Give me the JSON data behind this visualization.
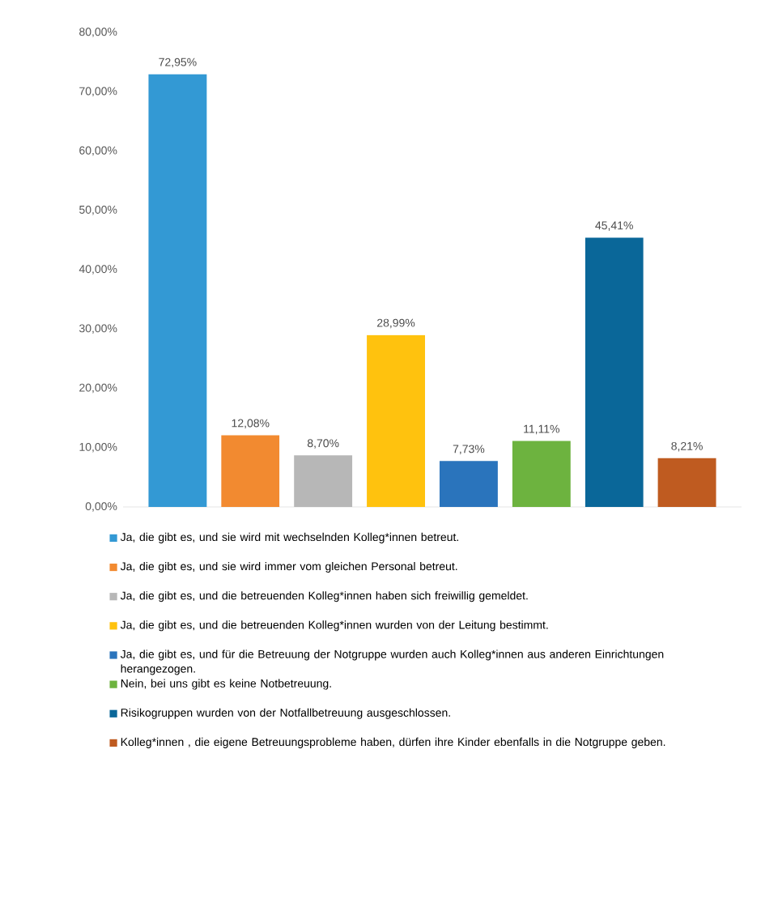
{
  "chart_data": {
    "type": "bar",
    "categories": [
      null,
      null,
      null,
      null,
      null,
      null,
      null,
      null
    ],
    "ylim": [
      0,
      80
    ],
    "yticks": [
      {
        "value": 0,
        "label": "0,00%"
      },
      {
        "value": 10,
        "label": "10,00%"
      },
      {
        "value": 20,
        "label": "20,00%"
      },
      {
        "value": 30,
        "label": "30,00%"
      },
      {
        "value": 40,
        "label": "40,00%"
      },
      {
        "value": 50,
        "label": "50,00%"
      },
      {
        "value": 60,
        "label": "60,00%"
      },
      {
        "value": 70,
        "label": "70,00%"
      },
      {
        "value": 80,
        "label": "80,00%"
      }
    ],
    "legend": "bottom",
    "series": [
      {
        "name": "Ja, die gibt es, und sie wird mit wechselnden Kolleg*innen betreut.",
        "color": "#3399d4",
        "values": [
          72.95,
          null,
          null,
          null,
          null,
          null,
          null,
          null
        ],
        "value_labels": [
          "72,95%",
          null,
          null,
          null,
          null,
          null,
          null,
          null
        ]
      },
      {
        "name": "Ja, die gibt es, und sie wird immer vom gleichen Personal betreut.",
        "color": "#f28a30",
        "values": [
          null,
          12.08,
          null,
          null,
          null,
          null,
          null,
          null
        ],
        "value_labels": [
          null,
          "12,08%",
          null,
          null,
          null,
          null,
          null,
          null
        ]
      },
      {
        "name": "Ja, die gibt es, und die betreuenden Kolleg*innen haben sich freiwillig gemeldet.",
        "color": "#b7b7b7",
        "values": [
          null,
          null,
          8.7,
          null,
          null,
          null,
          null,
          null
        ],
        "value_labels": [
          null,
          null,
          "8,70%",
          null,
          null,
          null,
          null,
          null
        ]
      },
      {
        "name": "Ja, die gibt es, und die betreuenden Kolleg*innen wurden von der Leitung bestimmt.",
        "color": "#ffc20e",
        "values": [
          null,
          null,
          null,
          28.99,
          null,
          null,
          null,
          null
        ],
        "value_labels": [
          null,
          null,
          null,
          "28,99%",
          null,
          null,
          null,
          null
        ]
      },
      {
        "name": "Ja, die gibt es, und für die Betreuung der Notgruppe wurden auch Kolleg*innen aus anderen Einrichtungen herangezogen.",
        "color": "#2a74bc",
        "values": [
          null,
          null,
          null,
          null,
          7.73,
          null,
          null,
          null
        ],
        "value_labels": [
          null,
          null,
          null,
          null,
          "7,73%",
          null,
          null,
          null
        ]
      },
      {
        "name": "Nein, bei uns gibt es keine Notbetreuung.",
        "color": "#6db33f",
        "values": [
          null,
          null,
          null,
          null,
          null,
          11.11,
          null,
          null
        ],
        "value_labels": [
          null,
          null,
          null,
          null,
          null,
          "11,11%",
          null,
          null
        ]
      },
      {
        "name": "Risikogruppen wurden von der Notfallbetreuung ausgeschlossen.",
        "color": "#0a6799",
        "values": [
          null,
          null,
          null,
          null,
          null,
          null,
          45.41,
          null
        ],
        "value_labels": [
          null,
          null,
          null,
          null,
          null,
          null,
          "45,41%",
          null
        ]
      },
      {
        "name": "Kolleg*innen , die eigene Betreuungsprobleme haben, dürfen ihre Kinder ebenfalls in die Notgruppe geben.",
        "color": "#bf5b20",
        "values": [
          null,
          null,
          null,
          null,
          null,
          null,
          null,
          8.21
        ],
        "value_labels": [
          null,
          null,
          null,
          null,
          null,
          null,
          null,
          "8,21%"
        ]
      }
    ]
  }
}
